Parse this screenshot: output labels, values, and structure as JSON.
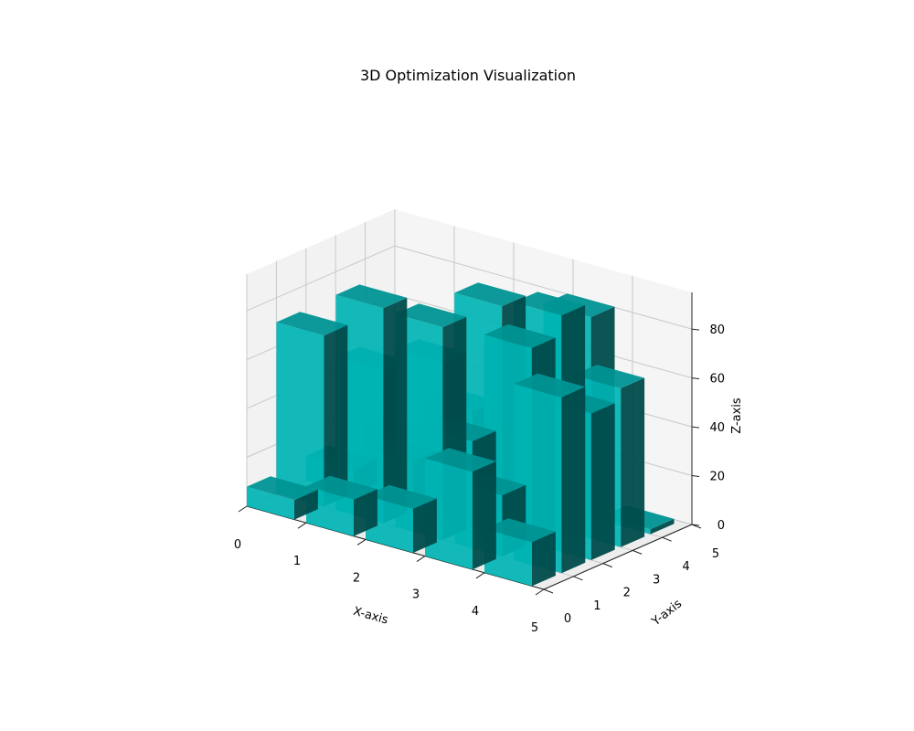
{
  "chart_data": {
    "type": "bar3d",
    "title": "3D Optimization Visualization",
    "xlabel": "X-axis",
    "ylabel": "Y-axis",
    "zlabel": "Z-axis",
    "xlim": [
      0,
      5
    ],
    "ylim": [
      0,
      5
    ],
    "zlim": [
      0,
      95
    ],
    "xticks": [
      0,
      1,
      2,
      3,
      4,
      5
    ],
    "yticks": [
      0,
      1,
      2,
      3,
      4,
      5
    ],
    "zticks": [
      0,
      20,
      40,
      60,
      80
    ],
    "grid": true,
    "bar_color": "#00b3b3",
    "bar_width": 0.8,
    "bar_depth": 0.8,
    "bars": [
      {
        "x": 0,
        "y": 0,
        "z": 8
      },
      {
        "x": 1,
        "y": 0,
        "z": 15
      },
      {
        "x": 2,
        "y": 0,
        "z": 18
      },
      {
        "x": 3,
        "y": 0,
        "z": 40
      },
      {
        "x": 4,
        "y": 0,
        "z": 18
      },
      {
        "x": 0,
        "y": 1,
        "z": 70
      },
      {
        "x": 1,
        "y": 1,
        "z": 88
      },
      {
        "x": 2,
        "y": 1,
        "z": 87
      },
      {
        "x": 3,
        "y": 1,
        "z": 25
      },
      {
        "x": 4,
        "y": 1,
        "z": 72
      },
      {
        "x": 0,
        "y": 2,
        "z": 10
      },
      {
        "x": 1,
        "y": 2,
        "z": 20
      },
      {
        "x": 2,
        "y": 2,
        "z": 35
      },
      {
        "x": 3,
        "y": 2,
        "z": 80
      },
      {
        "x": 4,
        "y": 2,
        "z": 60
      },
      {
        "x": 0,
        "y": 3,
        "z": 45
      },
      {
        "x": 1,
        "y": 3,
        "z": 55
      },
      {
        "x": 2,
        "y": 3,
        "z": 85
      },
      {
        "x": 3,
        "y": 3,
        "z": 88
      },
      {
        "x": 4,
        "y": 3,
        "z": 65
      },
      {
        "x": 0,
        "y": 4,
        "z": 12
      },
      {
        "x": 1,
        "y": 4,
        "z": 30
      },
      {
        "x": 2,
        "y": 4,
        "z": 60
      },
      {
        "x": 3,
        "y": 4,
        "z": 82
      },
      {
        "x": 4,
        "y": 4,
        "z": 2
      }
    ]
  }
}
